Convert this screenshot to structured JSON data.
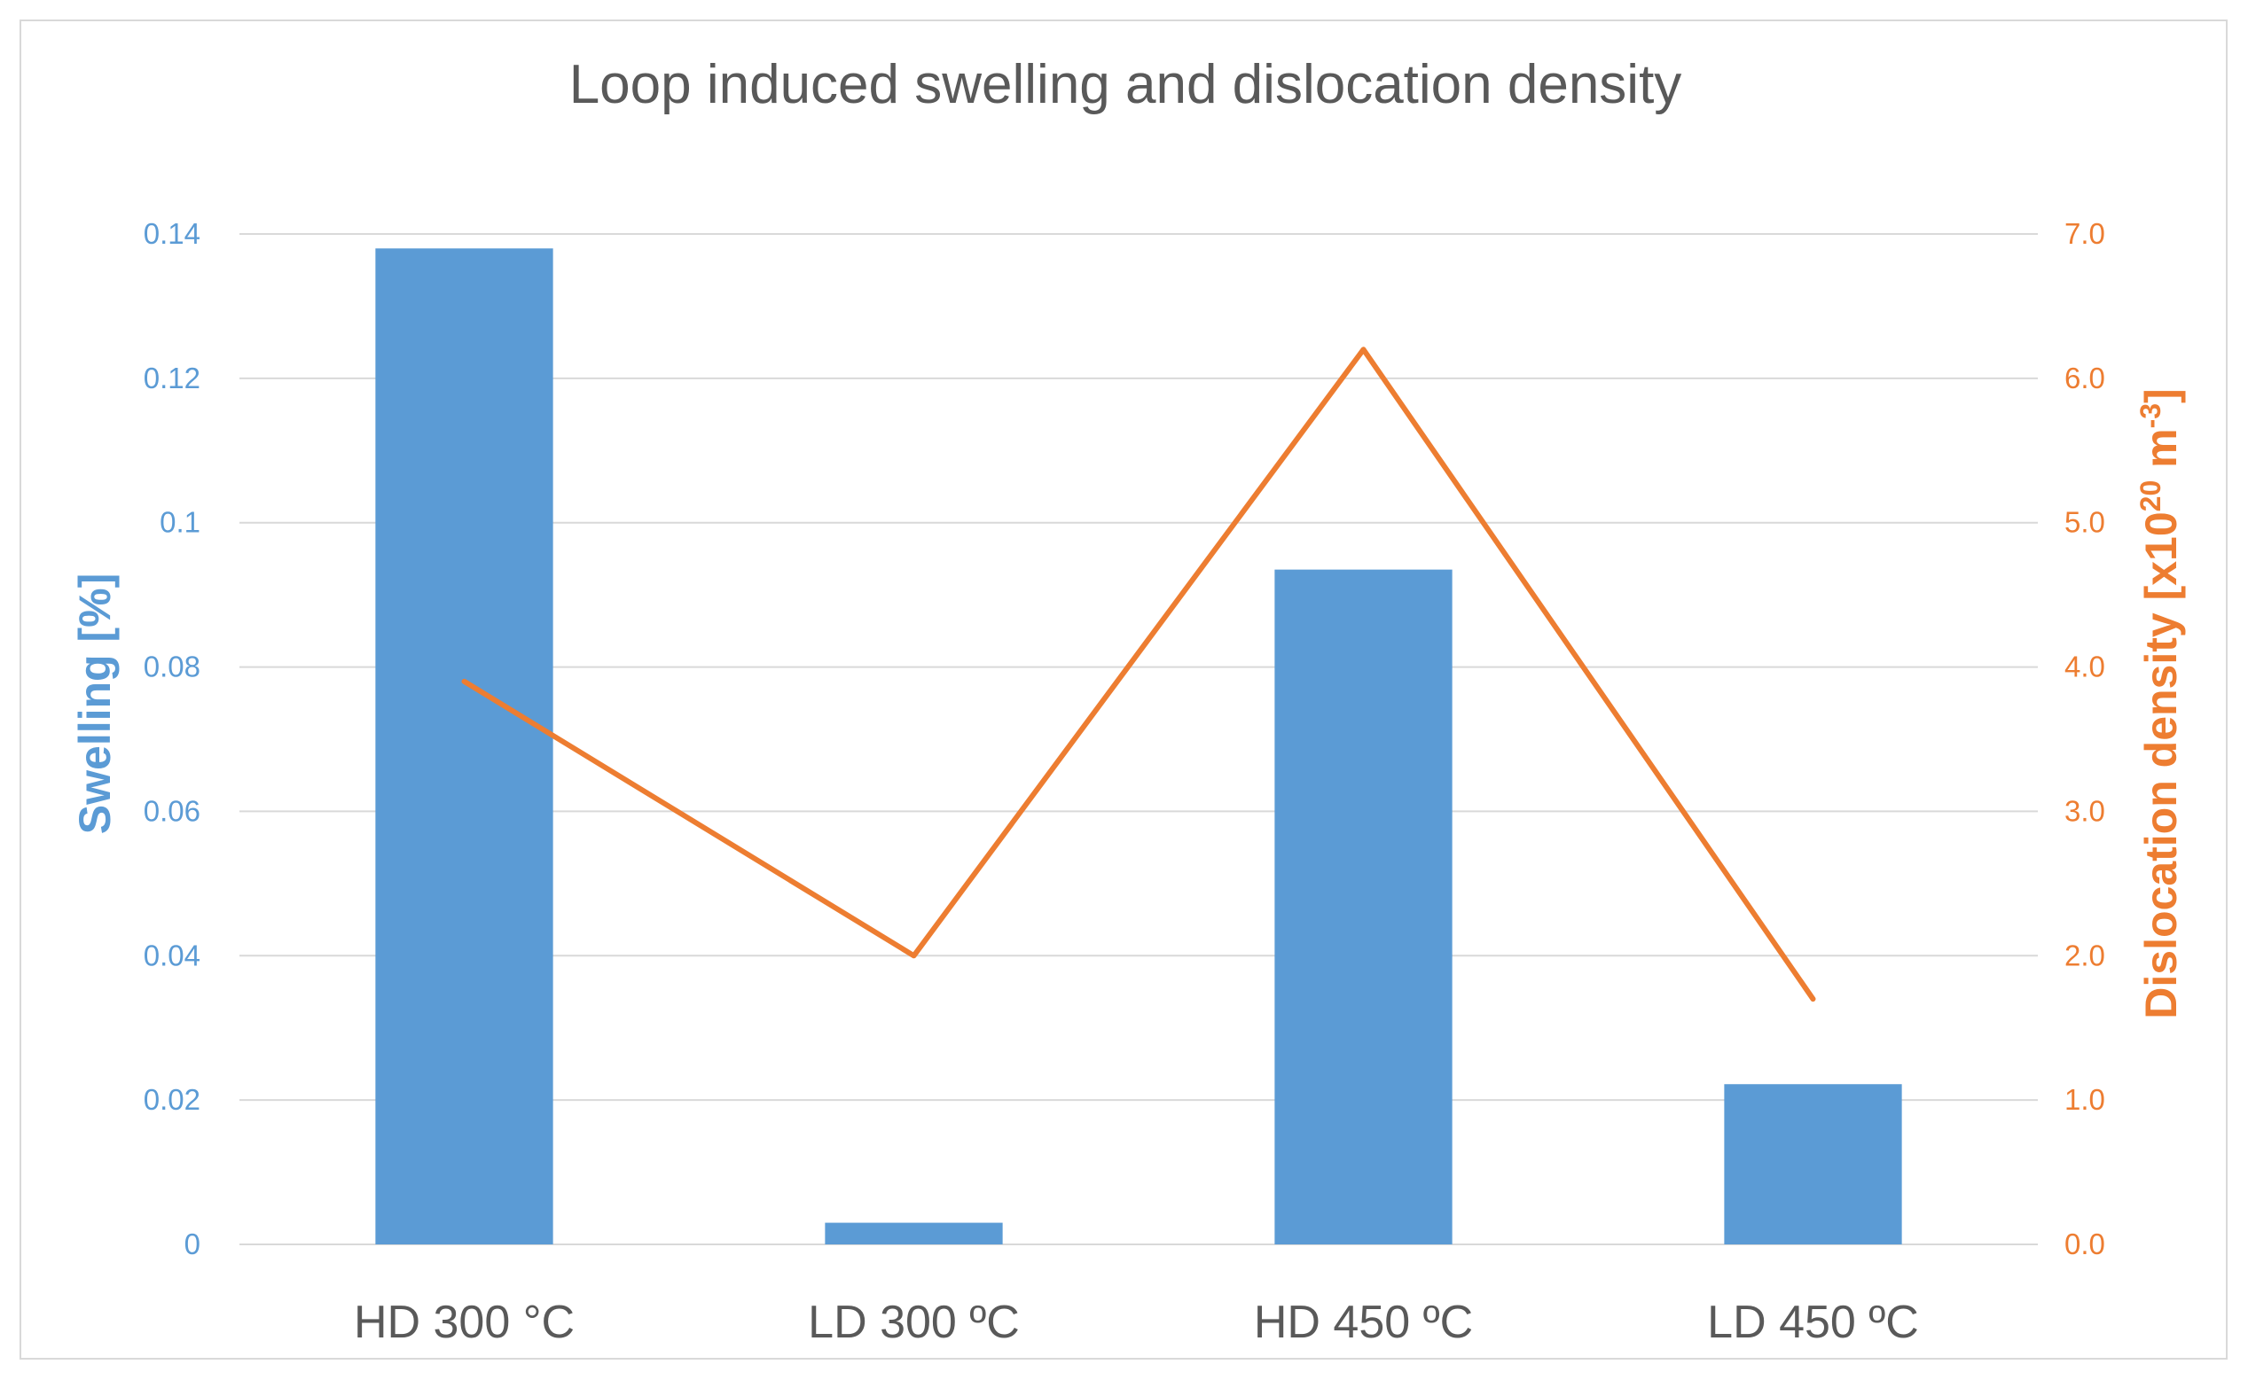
{
  "chart_data": {
    "type": "bar+line",
    "title": "Loop induced swelling  and dislocation density",
    "categories": [
      "HD 300 °C",
      "LD 300 ºC",
      "HD 450 ºC",
      "LD 450 ºC"
    ],
    "series": [
      {
        "name": "Swelling [%]",
        "kind": "bar",
        "axis": "left",
        "color": "#5b9bd5",
        "values": [
          0.138,
          0.003,
          0.0935,
          0.0222
        ]
      },
      {
        "name": "Dislocation density",
        "kind": "line",
        "axis": "right",
        "color": "#ed7d31",
        "values": [
          3.9,
          2.0,
          6.2,
          1.7
        ]
      }
    ],
    "y_left": {
      "label": "Swelling [%]",
      "ylim": [
        0,
        0.14
      ],
      "ticks": [
        0,
        0.02,
        0.04,
        0.06,
        0.08,
        0.1,
        0.12,
        0.14
      ],
      "tick_labels": [
        "0",
        "0.02",
        "0.04",
        "0.06",
        "0.08",
        "0.1",
        "0.12",
        "0.14"
      ]
    },
    "y_right": {
      "label_main": "Dislocation density [x10",
      "label_sup1": "20",
      "label_mid": " m",
      "label_sup2": "-3",
      "label_end": "]",
      "ylim": [
        0,
        7
      ],
      "ticks": [
        0,
        1,
        2,
        3,
        4,
        5,
        6,
        7
      ],
      "tick_labels": [
        "0.0",
        "1.0",
        "2.0",
        "3.0",
        "4.0",
        "5.0",
        "6.0",
        "7.0"
      ]
    },
    "grid": true,
    "legend": "none"
  }
}
